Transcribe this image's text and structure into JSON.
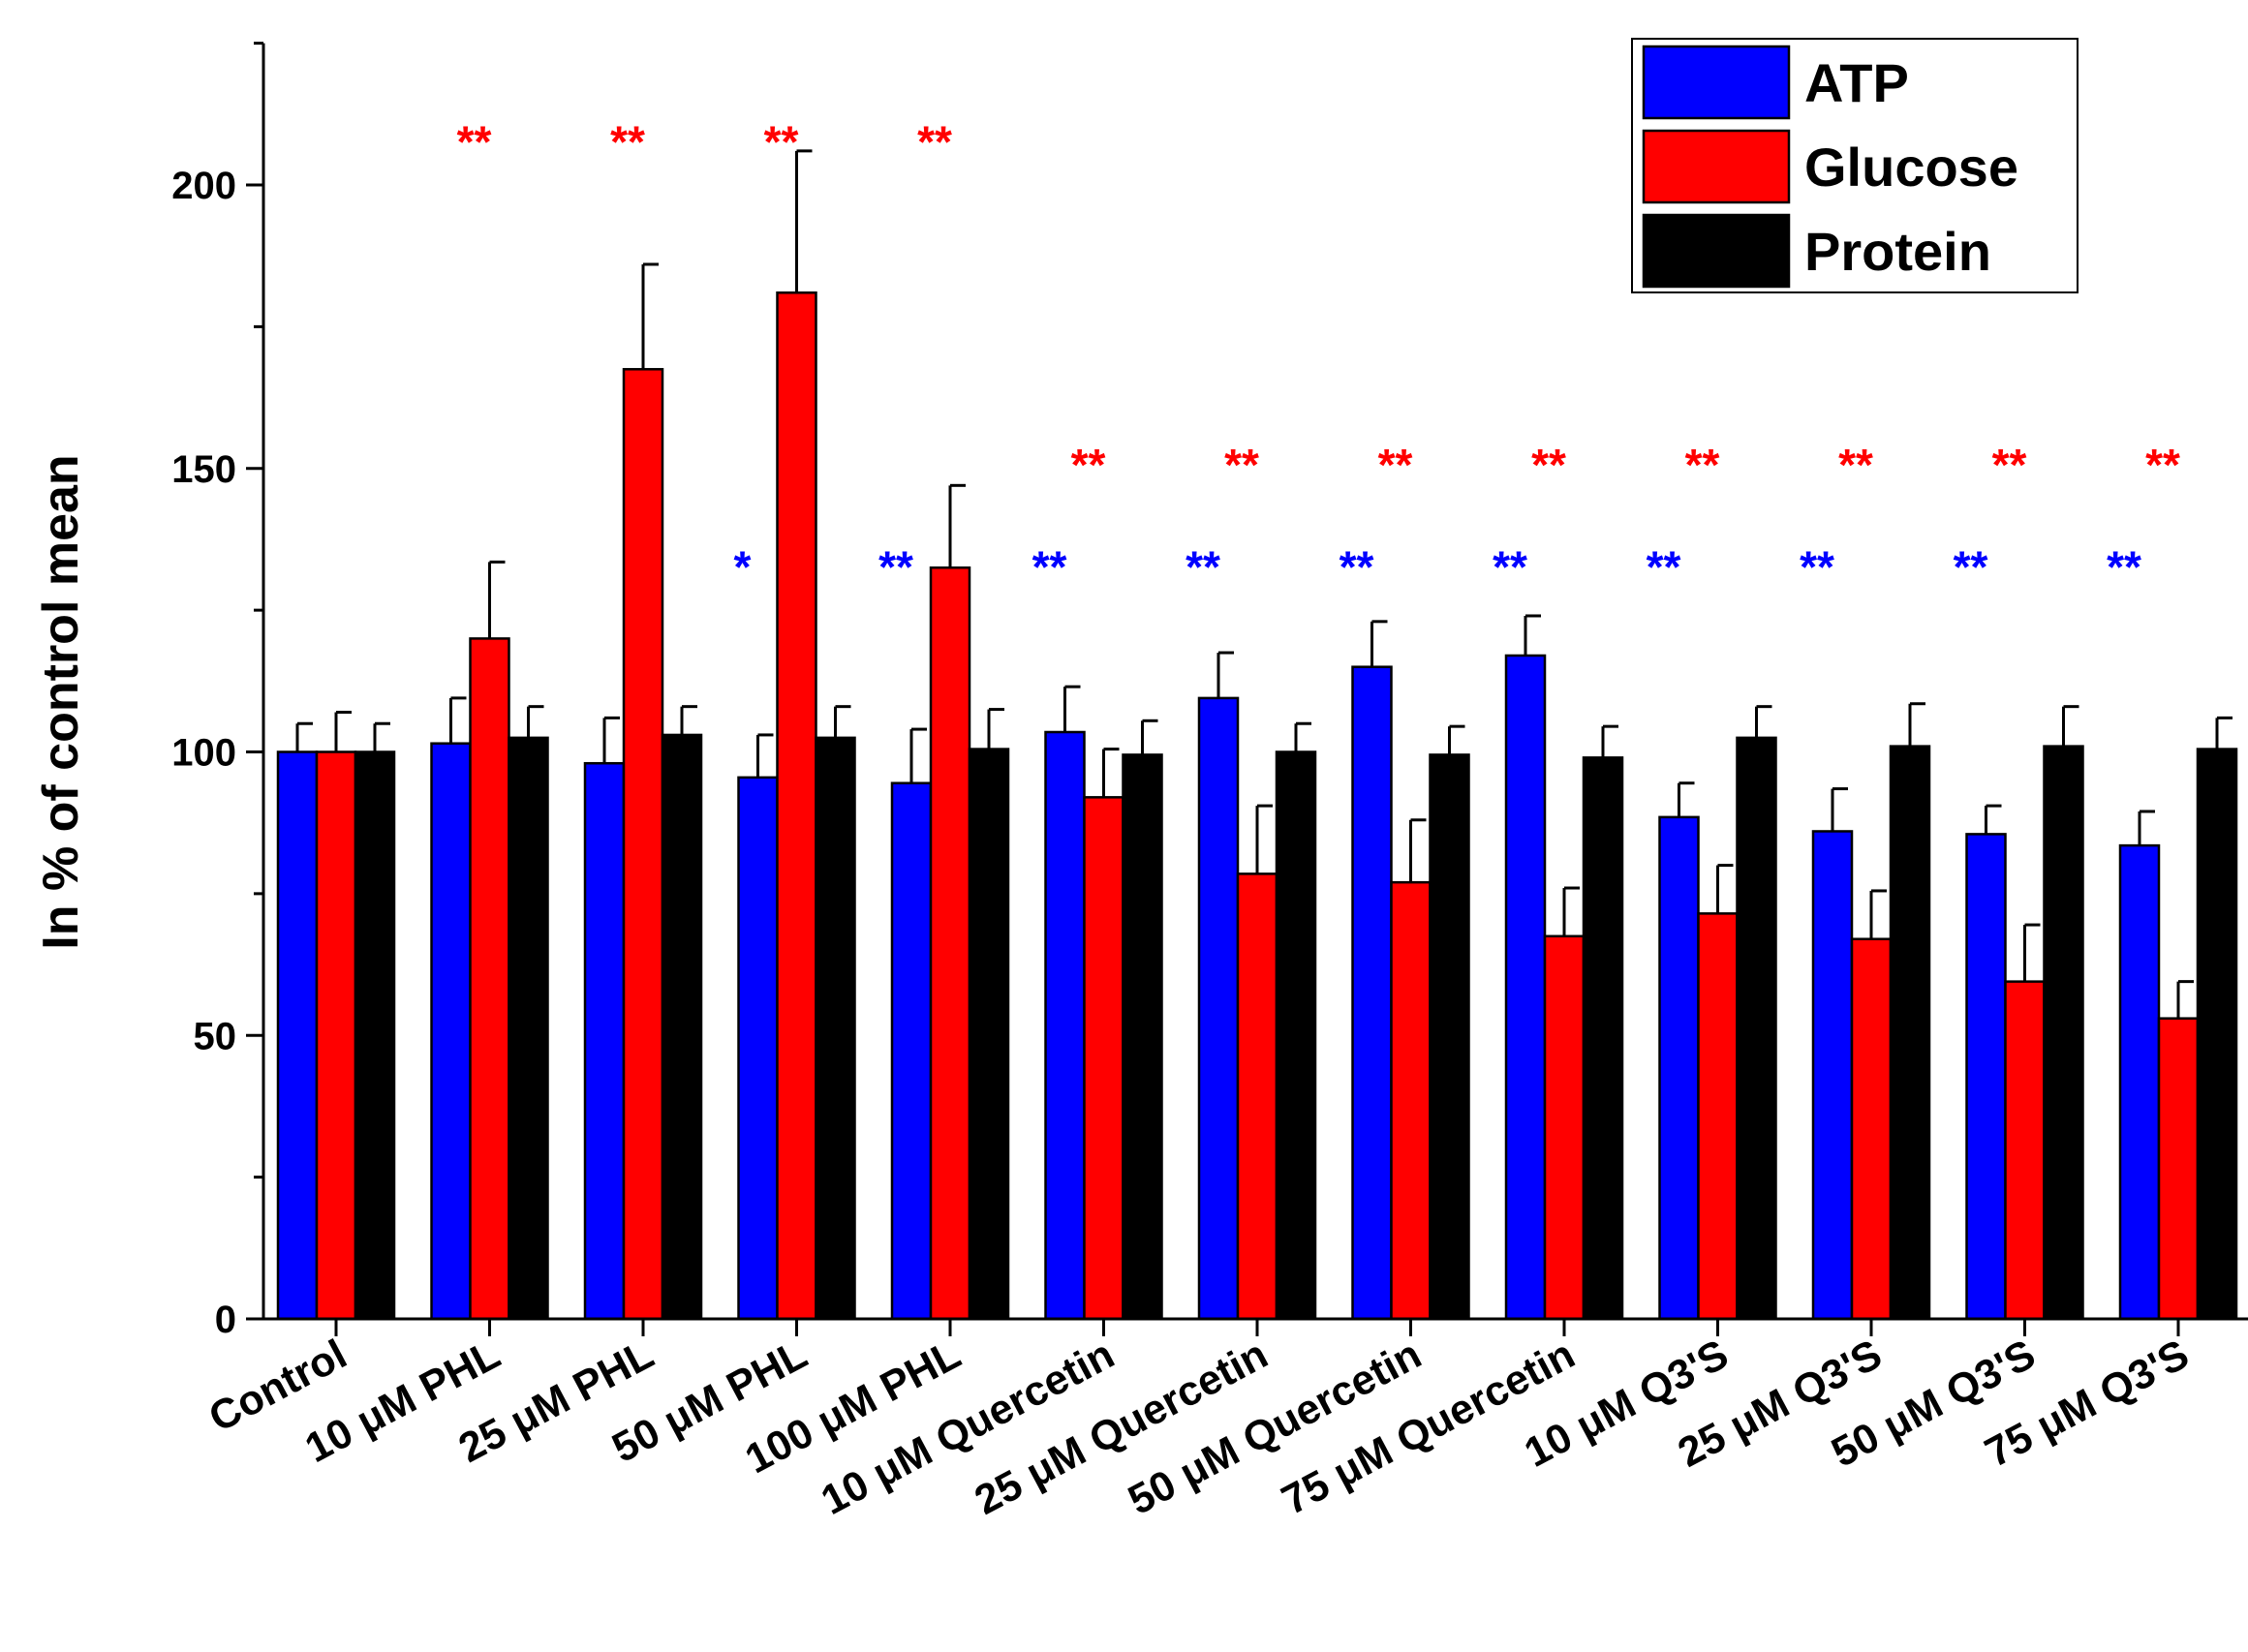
{
  "chart_data": {
    "type": "bar",
    "title": "",
    "xlabel": "",
    "ylabel": "In % of control mean",
    "ylim": [
      0,
      225
    ],
    "yticks": [
      0,
      50,
      100,
      150,
      200
    ],
    "grid": false,
    "legend_position": "top-right",
    "categories": [
      "Control",
      "10 μM PHL",
      "25 μM PHL",
      "50 μM PHL",
      "100 μM PHL",
      "10 μM Quercetin",
      "25 μM Quercetin",
      "50 μM Quercetin",
      "75 μM Quercetin",
      "10 μM Q3'S",
      "25 μM Q3'S",
      "50 μM Q3'S",
      "75 μM Q3'S"
    ],
    "series": [
      {
        "name": "ATP",
        "color": "#0000ff",
        "values": [
          100,
          101.5,
          98,
          95.5,
          94.5,
          103.5,
          109.5,
          115,
          117,
          88.5,
          86,
          85.5,
          83.5
        ],
        "errors": [
          5,
          8,
          8,
          7.5,
          9.5,
          8,
          8,
          8,
          7,
          6,
          7.5,
          5,
          6
        ],
        "significance": [
          "",
          "",
          "",
          "*",
          "**",
          "**",
          "**",
          "**",
          "**",
          "**",
          "**",
          "**",
          "**"
        ]
      },
      {
        "name": "Glucose",
        "color": "#ff0000",
        "values": [
          100,
          120,
          167.5,
          181,
          132.5,
          92,
          78.5,
          77,
          67.5,
          71.5,
          67,
          59.5,
          53
        ],
        "errors": [
          7,
          13.5,
          18.5,
          25,
          14.5,
          8.5,
          12,
          11,
          8.5,
          8.5,
          8.5,
          10,
          6.5
        ],
        "significance": [
          "",
          "**",
          "**",
          "**",
          "**",
          "**",
          "**",
          "**",
          "**",
          "**",
          "**",
          "**",
          "**"
        ]
      },
      {
        "name": "Protein",
        "color": "#000000",
        "values": [
          100,
          102.5,
          103,
          102.5,
          100.5,
          99.5,
          100,
          99.5,
          99,
          102.5,
          101,
          101,
          100.5
        ],
        "errors": [
          5,
          5.5,
          5,
          5.5,
          7,
          6,
          5,
          5,
          5.5,
          5.5,
          7.5,
          7,
          5.5
        ],
        "significance": [
          "",
          "",
          "",
          "",
          "",
          "",
          "",
          "",
          "",
          "",
          "",
          "",
          ""
        ]
      }
    ]
  }
}
